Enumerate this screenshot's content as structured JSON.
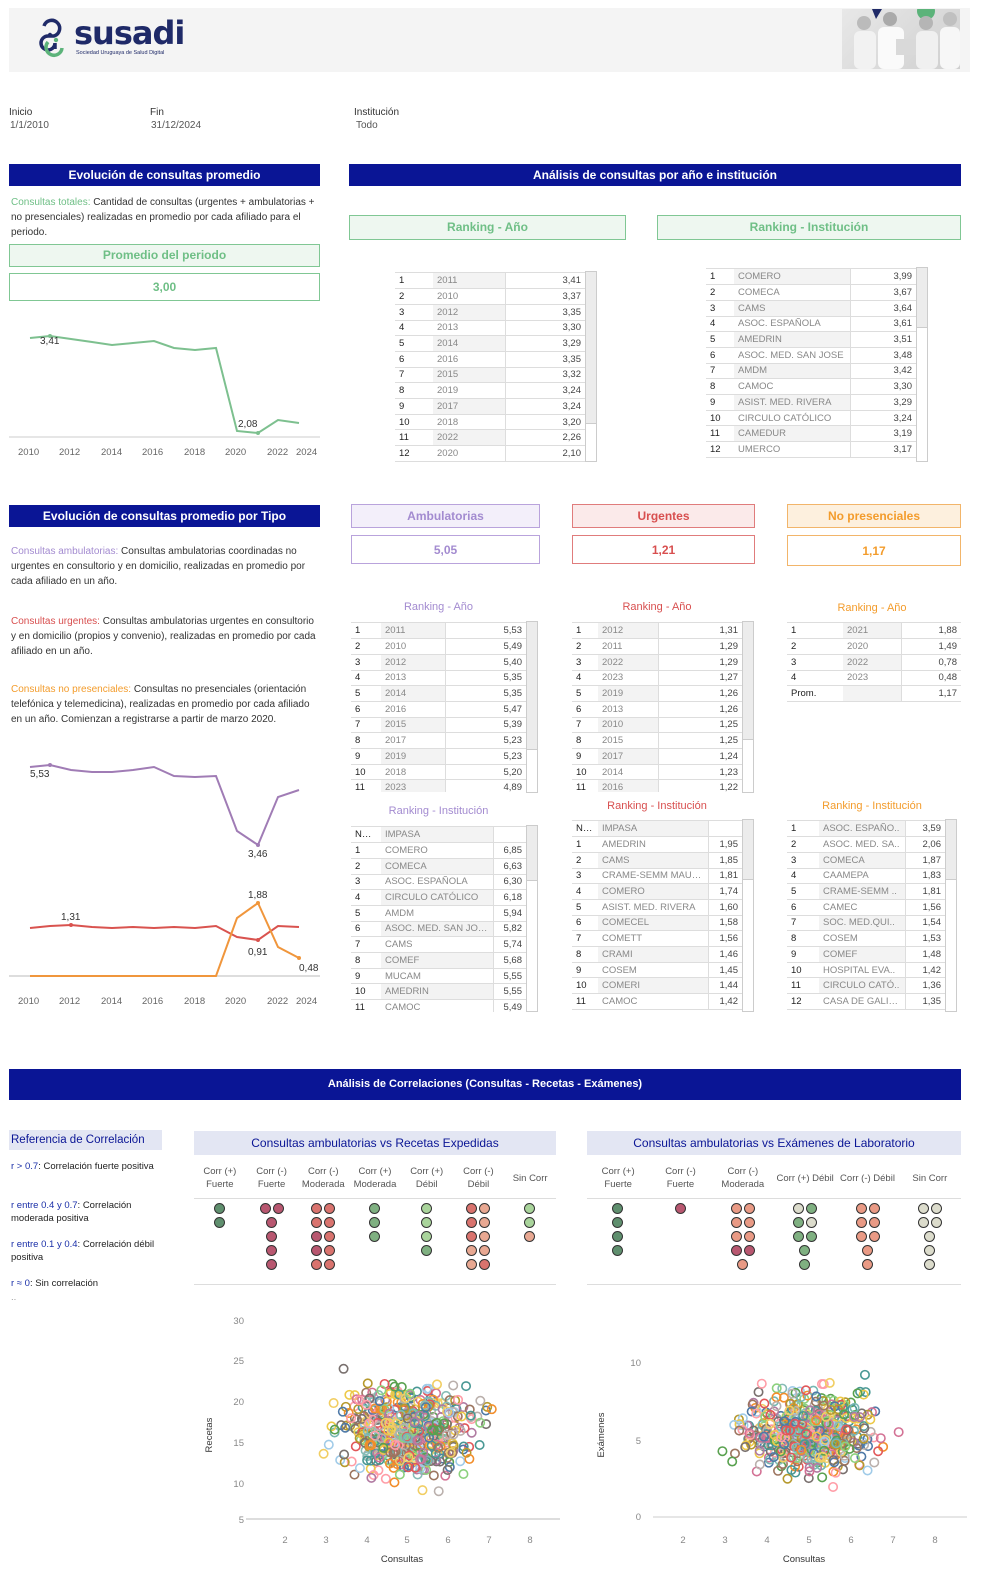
{
  "header": {
    "logo_text": "susadi",
    "logo_subtitle": "Sociedad Uruguaya de Salud Digital",
    "photo_alt": "medical-team-photo"
  },
  "filters": {
    "inicio_label": "Inicio",
    "inicio_value": "1/1/2010",
    "fin_label": "Fin",
    "fin_value": "31/12/2024",
    "institucion_label": "Institución",
    "institucion_value": "Todo"
  },
  "section1": {
    "title": "Evolución de consultas promedio",
    "desc_label": "Consultas totales:",
    "desc_text": " Cantidad de consultas (urgentes + ambulatorias + no presenciales)  realizadas en promedio por cada afiliado para el periodo.",
    "kpi_label": "Promedio del periodo",
    "kpi_value": "3,00",
    "chart_labels": {
      "max": "3,41",
      "min": "2,08"
    }
  },
  "section2": {
    "title": "Análisis de consultas por año e institución",
    "ranking_year_title": "Ranking - Año",
    "ranking_inst_title": "Ranking - Institución",
    "ranking_year": [
      [
        "1",
        "2011",
        "3,41"
      ],
      [
        "2",
        "2010",
        "3,37"
      ],
      [
        "3",
        "2012",
        "3,35"
      ],
      [
        "4",
        "2013",
        "3,30"
      ],
      [
        "5",
        "2014",
        "3,29"
      ],
      [
        "6",
        "2016",
        "3,35"
      ],
      [
        "7",
        "2015",
        "3,32"
      ],
      [
        "8",
        "2019",
        "3,24"
      ],
      [
        "9",
        "2017",
        "3,24"
      ],
      [
        "10",
        "2018",
        "3,20"
      ],
      [
        "11",
        "2022",
        "2,26"
      ],
      [
        "12",
        "2020",
        "2,10"
      ]
    ],
    "ranking_inst": [
      [
        "1",
        "COMERO",
        "3,99"
      ],
      [
        "2",
        "COMECA",
        "3,67"
      ],
      [
        "3",
        "CAMS",
        "3,64"
      ],
      [
        "4",
        "ASOC. ESPAÑOLA",
        "3,61"
      ],
      [
        "5",
        "AMEDRIN",
        "3,51"
      ],
      [
        "6",
        "ASOC. MED. SAN JOSE",
        "3,48"
      ],
      [
        "7",
        "AMDM",
        "3,42"
      ],
      [
        "8",
        "CAMOC",
        "3,30"
      ],
      [
        "9",
        "ASIST. MED. RIVERA",
        "3,29"
      ],
      [
        "10",
        "CIRCULO CATÓLICO",
        "3,24"
      ],
      [
        "11",
        "CAMEDUR",
        "3,19"
      ],
      [
        "12",
        "UMERCO",
        "3,17"
      ]
    ]
  },
  "section3": {
    "title": "Evolución de consultas promedio por Tipo",
    "desc": [
      {
        "label": "Consultas ambulatorias:",
        "text": " Consultas ambulatorias coordinadas no urgentes en consultorio y en domicilio, realizadas en promedio por cada afiliado en un año."
      },
      {
        "label": "Consultas urgentes:",
        "text": " Consultas ambulatorias urgentes en consultorio y en domicilio (propios y convenio), realizadas en promedio por cada afiliado en un año."
      },
      {
        "label": "Consultas no presenciales:",
        "text": " Consultas no presenciales (orientación telefónica y telemedicina), realizadas en promedio por cada afiliado en un año. Comienzan a registrarse a partir de marzo 2020."
      }
    ],
    "chart_labels": {
      "amb_max": "5,53",
      "amb_min": "3,46",
      "urg_max": "1,31",
      "urg_min": "0,91",
      "np_max": "1,88",
      "np_last": "0,48"
    },
    "kpis": {
      "amb_label": "Ambulatorias",
      "amb_value": "5,05",
      "urg_label": "Urgentes",
      "urg_value": "1,21",
      "np_label": "No presenciales",
      "np_value": "1,17"
    },
    "rk_year_title": "Ranking - Año",
    "rk_inst_title": "Ranking - Institución",
    "amb_year": [
      [
        "1",
        "2011",
        "5,53"
      ],
      [
        "2",
        "2010",
        "5,49"
      ],
      [
        "3",
        "2012",
        "5,40"
      ],
      [
        "4",
        "2013",
        "5,35"
      ],
      [
        "5",
        "2014",
        "5,35"
      ],
      [
        "6",
        "2016",
        "5,47"
      ],
      [
        "7",
        "2015",
        "5,39"
      ],
      [
        "8",
        "2017",
        "5,23"
      ],
      [
        "9",
        "2019",
        "5,23"
      ],
      [
        "10",
        "2018",
        "5,20"
      ],
      [
        "11",
        "2023",
        "4,89"
      ]
    ],
    "urg_year": [
      [
        "1",
        "2012",
        "1,31"
      ],
      [
        "2",
        "2011",
        "1,29"
      ],
      [
        "3",
        "2022",
        "1,29"
      ],
      [
        "4",
        "2023",
        "1,27"
      ],
      [
        "5",
        "2019",
        "1,26"
      ],
      [
        "6",
        "2013",
        "1,26"
      ],
      [
        "7",
        "2010",
        "1,25"
      ],
      [
        "8",
        "2015",
        "1,25"
      ],
      [
        "9",
        "2017",
        "1,24"
      ],
      [
        "10",
        "2014",
        "1,23"
      ],
      [
        "11",
        "2016",
        "1,22"
      ]
    ],
    "np_year": [
      [
        "1",
        "2021",
        "1,88"
      ],
      [
        "2",
        "2020",
        "1,49"
      ],
      [
        "3",
        "2022",
        "0,78"
      ],
      [
        "4",
        "2023",
        "0,48"
      ],
      [
        "Prom.",
        "",
        "1,17"
      ]
    ],
    "amb_inst": [
      [
        "NULL",
        "IMPASA",
        ""
      ],
      [
        "1",
        "COMERO",
        "6,85"
      ],
      [
        "2",
        "COMECA",
        "6,63"
      ],
      [
        "3",
        "ASOC. ESPAÑOLA",
        "6,30"
      ],
      [
        "4",
        "CIRCULO CATÓLICO",
        "6,18"
      ],
      [
        "5",
        "AMDM",
        "5,94"
      ],
      [
        "6",
        "ASOC. MED. SAN JOSE",
        "5,82"
      ],
      [
        "7",
        "CAMS",
        "5,74"
      ],
      [
        "8",
        "COMEF",
        "5,68"
      ],
      [
        "9",
        "MUCAM",
        "5,55"
      ],
      [
        "10",
        "AMEDRIN",
        "5,55"
      ],
      [
        "11",
        "CAMOC",
        "5,49"
      ]
    ],
    "urg_inst": [
      [
        "NU..",
        "IMPASA",
        ""
      ],
      [
        "1",
        "AMEDRIN",
        "1,95"
      ],
      [
        "2",
        "CAMS",
        "1,85"
      ],
      [
        "3",
        "CRAME-SEMM MAUTO..",
        "1,81"
      ],
      [
        "4",
        "COMERO",
        "1,74"
      ],
      [
        "5",
        "ASIST. MED. RIVERA",
        "1,60"
      ],
      [
        "6",
        "COMECEL",
        "1,58"
      ],
      [
        "7",
        "COMETT",
        "1,56"
      ],
      [
        "8",
        "CRAMI",
        "1,46"
      ],
      [
        "9",
        "COSEM",
        "1,45"
      ],
      [
        "10",
        "COMERI",
        "1,44"
      ],
      [
        "11",
        "CAMOC",
        "1,42"
      ]
    ],
    "np_inst": [
      [
        "1",
        "ASOC. ESPAÑO..",
        "3,59"
      ],
      [
        "2",
        "ASOC. MED. SA..",
        "2,06"
      ],
      [
        "3",
        "COMECA",
        "1,87"
      ],
      [
        "4",
        "CAAMEPA",
        "1,83"
      ],
      [
        "5",
        "CRAME-SEMM ..",
        "1,81"
      ],
      [
        "6",
        "CAMEC",
        "1,56"
      ],
      [
        "7",
        "SOC. MED.QUI..",
        "1,54"
      ],
      [
        "8",
        "COSEM",
        "1,53"
      ],
      [
        "9",
        "COMEF",
        "1,48"
      ],
      [
        "10",
        "HOSPITAL EVA..",
        "1,42"
      ],
      [
        "11",
        "CIRCULO CATÓ..",
        "1,36"
      ],
      [
        "12",
        "CASA DE GALIC..",
        "1,35"
      ]
    ]
  },
  "section4": {
    "title": "Análisis de Correlaciones (Consultas - Recetas - Exámenes)",
    "ref_title": "Referencia de Correlación",
    "refs": [
      {
        "key": "r > 0.7",
        "text": ": Correlación fuerte positiva"
      },
      {
        "key": "r entre 0.4 y 0.7",
        "text": ": Correlación moderada positiva"
      },
      {
        "key": "r entre 0.1 y 0.4",
        "text": ": Correlación débil positiva"
      },
      {
        "key": "r ≈ 0",
        "text": ": Sin correlación"
      }
    ],
    "ref_more": "..",
    "left_title": "Consultas ambulatorias vs Recetas Expedidas",
    "right_title": "Consultas ambulatorias vs Exámenes de Laboratorio",
    "left_cats": [
      "Corr (+)\nFuerte",
      "Corr (-)\nFuerte",
      "Corr (-)\nModerada",
      "Corr (+)\nModerada",
      "Corr (+)\nDébil",
      "Corr (-)\nDébil",
      "Sin Corr"
    ],
    "right_cats": [
      "Corr (+)\nFuerte",
      "Corr (-)\nFuerte",
      "Corr (-)\nModerada",
      "Corr (+) Débil",
      "Corr (-) Débil",
      "Sin Corr"
    ],
    "left_scatter": {
      "ylabel": "Recetas",
      "xlabel": "Consultas",
      "yticks": [
        "30",
        "25",
        "20",
        "15",
        "10",
        "5"
      ],
      "xticks": [
        "2",
        "3",
        "4",
        "5",
        "6",
        "7",
        "8"
      ]
    },
    "right_scatter": {
      "ylabel": "Exámenes",
      "xlabel": "Consultas",
      "yticks": [
        "10",
        "5",
        "0"
      ],
      "xticks": [
        "2",
        "3",
        "4",
        "5",
        "6",
        "7",
        "8"
      ]
    }
  },
  "colors": {
    "banner": "#0a1595",
    "green": "#7dc08f",
    "purple": "#a07cb5",
    "red": "#d9534f",
    "orange": "#f0963c"
  },
  "chart_data": [
    {
      "type": "line",
      "title": "Evolución de consultas promedio",
      "x": [
        2010,
        2011,
        2012,
        2013,
        2014,
        2015,
        2016,
        2017,
        2018,
        2019,
        2020,
        2021,
        2022,
        2023
      ],
      "series": [
        {
          "name": "Consultas totales",
          "values": [
            3.37,
            3.41,
            3.35,
            3.3,
            3.29,
            3.32,
            3.35,
            3.24,
            3.2,
            3.24,
            2.1,
            2.08,
            2.26,
            2.2
          ]
        }
      ],
      "annotations": [
        "3,41",
        "2,08"
      ],
      "xticks": [
        "2010",
        "2012",
        "2014",
        "2016",
        "2018",
        "2020",
        "2022",
        "2024"
      ]
    },
    {
      "type": "line",
      "title": "Evolución de consultas promedio por Tipo",
      "x": [
        2010,
        2011,
        2012,
        2013,
        2014,
        2015,
        2016,
        2017,
        2018,
        2019,
        2020,
        2021,
        2022,
        2023
      ],
      "series": [
        {
          "name": "Ambulatorias",
          "values": [
            5.49,
            5.53,
            5.4,
            5.35,
            5.35,
            5.39,
            5.47,
            5.23,
            5.2,
            5.23,
            3.9,
            3.46,
            4.6,
            4.89
          ]
        },
        {
          "name": "Urgentes",
          "values": [
            1.25,
            1.29,
            1.31,
            1.26,
            1.23,
            1.25,
            1.22,
            1.24,
            1.2,
            1.26,
            0.98,
            0.91,
            1.29,
            1.27
          ]
        },
        {
          "name": "No presenciales",
          "values": [
            0,
            0,
            0,
            0,
            0,
            0,
            0,
            0,
            0,
            0,
            1.49,
            1.88,
            0.78,
            0.48
          ]
        }
      ],
      "annotations": [
        "5,53",
        "3,46",
        "1,31",
        "0,91",
        "1,88",
        "0,48"
      ],
      "xticks": [
        "2010",
        "2012",
        "2014",
        "2016",
        "2018",
        "2020",
        "2022",
        "2024"
      ]
    },
    {
      "type": "scatter",
      "title": "Consultas vs Recetas",
      "xlabel": "Consultas",
      "ylabel": "Recetas",
      "xlim": [
        1.5,
        8.5
      ],
      "ylim": [
        5,
        30
      ]
    },
    {
      "type": "scatter",
      "title": "Consultas vs Exámenes",
      "xlabel": "Consultas",
      "ylabel": "Exámenes",
      "xlim": [
        1.5,
        8.5
      ],
      "ylim": [
        0,
        12.5
      ]
    }
  ]
}
